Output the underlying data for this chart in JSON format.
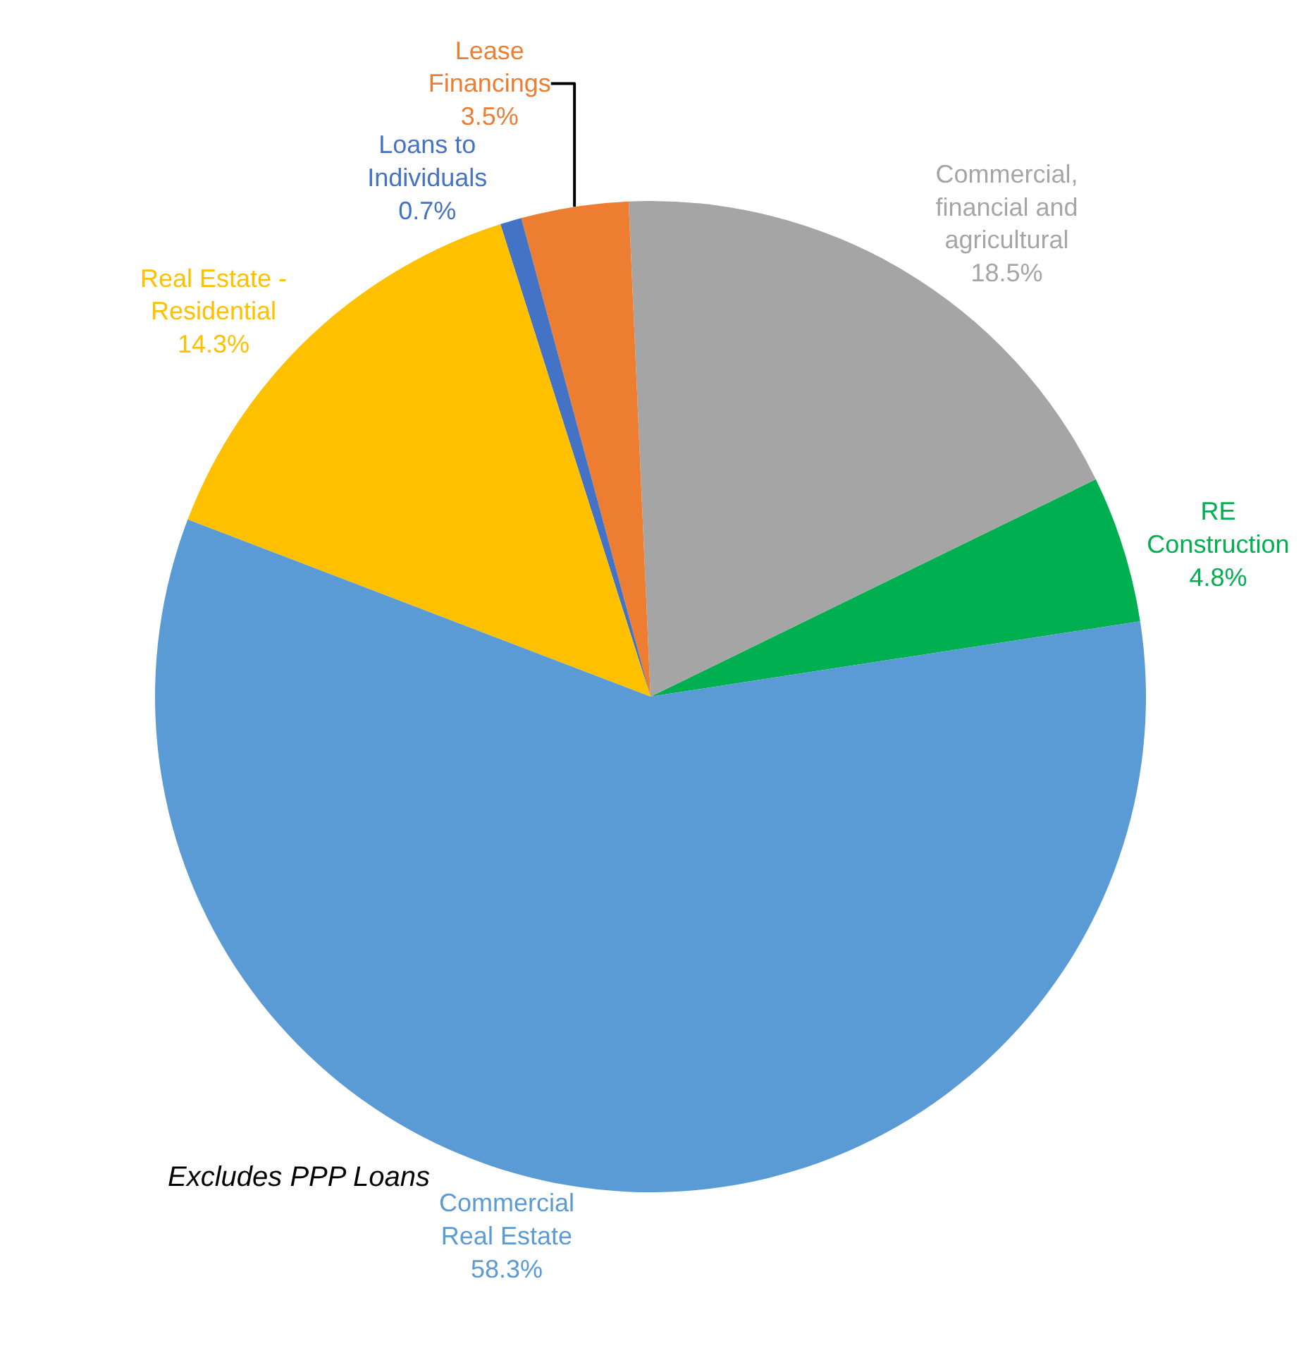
{
  "chart_data": {
    "type": "pie",
    "categories": [
      "RE Construction",
      "Commercial, financial and agricultural",
      "Lease Financings",
      "Loans to Individuals",
      "Real Estate - Residential",
      "Commercial Real Estate"
    ],
    "values": [
      4.8,
      18.5,
      3.5,
      0.7,
      14.3,
      58.3
    ],
    "value_labels": [
      "4.8%",
      "18.5%",
      "3.5%",
      "0.7%",
      "14.3%",
      "58.3%"
    ],
    "colors": [
      "#00b050",
      "#a5a5a5",
      "#ed7d31",
      "#4472c4",
      "#ffc000",
      "#5b9bd5"
    ],
    "annotations": [
      "Excludes PPP Loans"
    ],
    "legend": false
  }
}
